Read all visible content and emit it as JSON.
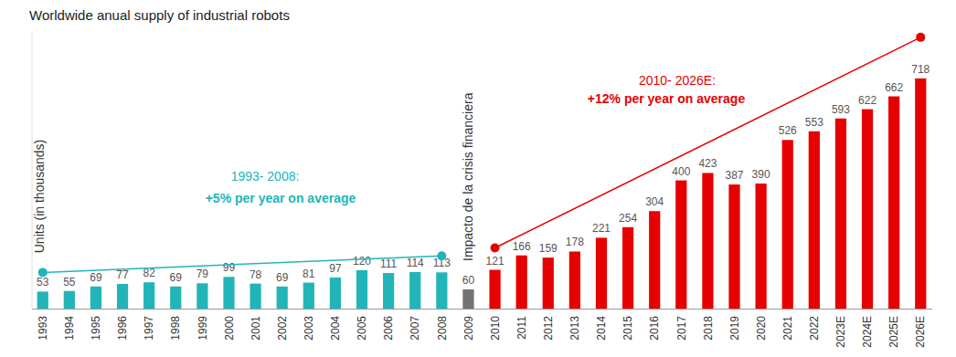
{
  "chart_data": {
    "type": "bar",
    "title": "Worldwide anual supply of industrial robots",
    "y_label": "Units (in thousands)",
    "annotations": [
      "1993- 2008:",
      "+5% per year on average",
      "2010- 2026E:",
      "+12% per year on average",
      "Impacto de la crisis financiera"
    ],
    "categories": [
      "1993",
      "1994",
      "1995",
      "1996",
      "1997",
      "1998",
      "1999",
      "2000",
      "2001",
      "2002",
      "2003",
      "2004",
      "2005",
      "2006",
      "2007",
      "2008",
      "2009",
      "2010",
      "2011",
      "2012",
      "2013",
      "2014",
      "2015",
      "2016",
      "2017",
      "2018",
      "2019",
      "2020",
      "2021",
      "2022",
      "2023E",
      "2024E",
      "2025E",
      "2026E"
    ],
    "values": [
      53,
      55,
      69,
      77,
      82,
      69,
      79,
      99,
      78,
      69,
      81,
      97,
      120,
      111,
      114,
      113,
      60,
      121,
      166,
      159,
      178,
      221,
      254,
      304,
      400,
      423,
      387,
      390,
      526,
      553,
      593,
      622,
      662,
      718
    ],
    "colors": [
      "#22b5b8",
      "#22b5b8",
      "#22b5b8",
      "#22b5b8",
      "#22b5b8",
      "#22b5b8",
      "#22b5b8",
      "#22b5b8",
      "#22b5b8",
      "#22b5b8",
      "#22b5b8",
      "#22b5b8",
      "#22b5b8",
      "#22b5b8",
      "#22b5b8",
      "#22b5b8",
      "#737373",
      "#e60000",
      "#e60000",
      "#e60000",
      "#e60000",
      "#e60000",
      "#e60000",
      "#e60000",
      "#e60000",
      "#e60000",
      "#e60000",
      "#e60000",
      "#e60000",
      "#e60000",
      "#e60000",
      "#e60000",
      "#e60000",
      "#e60000"
    ],
    "ylim": [
      0,
      860
    ],
    "data_labels": true,
    "tick_labels": "x",
    "grid": false
  }
}
